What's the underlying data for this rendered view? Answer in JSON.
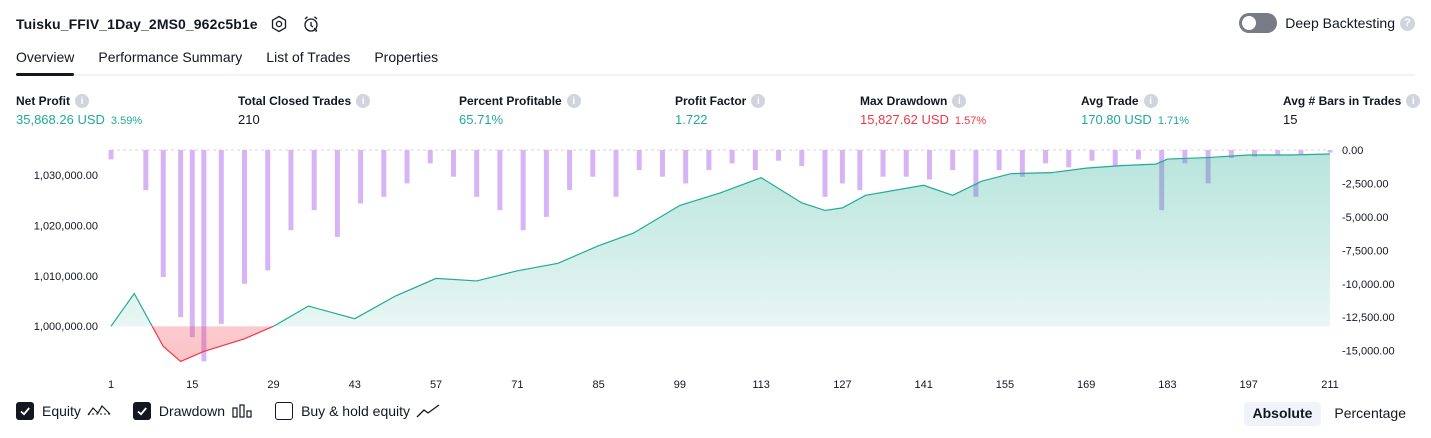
{
  "header": {
    "title": "Tuisku_FFIV_1Day_2MS0_962c5b1e",
    "deep_backtesting_label": "Deep Backtesting",
    "deep_backtesting_enabled": false
  },
  "tabs": [
    "Overview",
    "Performance Summary",
    "List of Trades",
    "Properties"
  ],
  "active_tab": "Overview",
  "metrics": [
    {
      "label": "Net Profit",
      "value": "35,868.26 USD",
      "pct": "3.59%",
      "color": "#22ab94"
    },
    {
      "label": "Total Closed Trades",
      "value": "210",
      "pct": "",
      "color": "#131722"
    },
    {
      "label": "Percent Profitable",
      "value": "65.71%",
      "pct": "",
      "color": "#22ab94"
    },
    {
      "label": "Profit Factor",
      "value": "1.722",
      "pct": "",
      "color": "#22ab94"
    },
    {
      "label": "Max Drawdown",
      "value": "15,827.62 USD",
      "pct": "1.57%",
      "color": "#f23645"
    },
    {
      "label": "Avg Trade",
      "value": "170.80 USD",
      "pct": "1.71%",
      "color": "#22ab94"
    },
    {
      "label": "Avg # Bars in Trades",
      "value": "15",
      "pct": "",
      "color": "#131722"
    }
  ],
  "legend": {
    "equity_label": "Equity",
    "drawdown_label": "Drawdown",
    "buyhold_label": "Buy & hold equity",
    "equity_checked": true,
    "drawdown_checked": true,
    "buyhold_checked": false
  },
  "mode": {
    "absolute_label": "Absolute",
    "percentage_label": "Percentage",
    "selected": "Absolute"
  },
  "colors": {
    "equity_line": "#22ab94",
    "equity_below": "#f23645",
    "drawdown_bar": "#d7b5f5",
    "profit": "#22ab94",
    "loss": "#f23645"
  },
  "chart_data": {
    "type": "area",
    "x_ticks": [
      "1",
      "15",
      "29",
      "43",
      "57",
      "71",
      "85",
      "99",
      "113",
      "127",
      "141",
      "155",
      "169",
      "183",
      "197",
      "211"
    ],
    "left_axis": {
      "ticks": [
        "1,030,000.00",
        "1,020,000.00",
        "1,010,000.00",
        "1,000,000.00"
      ],
      "ylim": [
        992500,
        1035000
      ],
      "baseline": 1000000
    },
    "right_axis": {
      "ticks": [
        "0.00",
        "-2,500.00",
        "-5,000.00",
        "-7,500.00",
        "-10,000.00",
        "-12,500.00",
        "-15,000.00"
      ],
      "ylim": [
        -16000,
        0
      ]
    },
    "series": [
      {
        "name": "Equity",
        "type": "line",
        "x": [
          1,
          5,
          10,
          13,
          17,
          24,
          29,
          35,
          43,
          50,
          57,
          64,
          71,
          78,
          85,
          91,
          99,
          106,
          113,
          120,
          124,
          127,
          131,
          141,
          146,
          151,
          156,
          163,
          169,
          175,
          181,
          183,
          190,
          197,
          204,
          211
        ],
        "y": [
          1000000,
          1006500,
          996000,
          993000,
          995000,
          997500,
          1000000,
          1004000,
          1001500,
          1006000,
          1009500,
          1009000,
          1011000,
          1012500,
          1016000,
          1018500,
          1024000,
          1026500,
          1029500,
          1024500,
          1023000,
          1023500,
          1026000,
          1028000,
          1026000,
          1028800,
          1030300,
          1030500,
          1031400,
          1031900,
          1032200,
          1033200,
          1033500,
          1034000,
          1034000,
          1034200
        ]
      },
      {
        "name": "Drawdown",
        "type": "bar",
        "x": [
          1,
          7,
          10,
          13,
          15,
          17,
          20,
          24,
          28,
          32,
          36,
          40,
          44,
          48,
          52,
          56,
          60,
          64,
          68,
          72,
          76,
          80,
          84,
          88,
          92,
          96,
          100,
          104,
          108,
          112,
          116,
          120,
          124,
          127,
          130,
          134,
          138,
          142,
          146,
          150,
          154,
          158,
          162,
          166,
          170,
          174,
          178,
          182,
          186,
          190,
          194,
          198,
          202,
          206,
          211
        ],
        "y": [
          -700,
          -3000,
          -9500,
          -12500,
          -14000,
          -15800,
          -13000,
          -10000,
          -9000,
          -6000,
          -4500,
          -6500,
          -4000,
          -3500,
          -2500,
          -1000,
          -2000,
          -3500,
          -4500,
          -6000,
          -5000,
          -3000,
          -2000,
          -3500,
          -1500,
          -2000,
          -2500,
          -1500,
          -1000,
          -1500,
          -800,
          -1200,
          -3500,
          -2500,
          -3000,
          -2000,
          -2000,
          -2200,
          -1500,
          -3500,
          -1500,
          -2000,
          -1000,
          -1300,
          -800,
          -1200,
          -700,
          -4500,
          -1000,
          -2500,
          -600,
          -500,
          -400,
          -300,
          -200
        ]
      }
    ]
  }
}
